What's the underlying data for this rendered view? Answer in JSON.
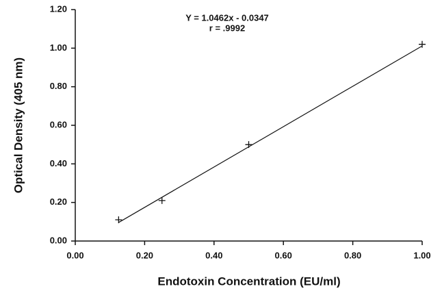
{
  "chart_data": {
    "type": "scatter",
    "xlabel": "Endotoxin Concentration (EU/ml)",
    "ylabel": "Optical Density (405 nm)",
    "annotations": [
      "Y = 1.0462x - 0.0347",
      "r = .9992"
    ],
    "x": [
      0.125,
      0.25,
      0.5,
      1.0
    ],
    "values": [
      0.11,
      0.21,
      0.5,
      1.02
    ],
    "fit": {
      "slope": 1.0462,
      "intercept": -0.0347
    },
    "color": "#111111",
    "xlim": [
      0,
      1
    ],
    "ylim": [
      0,
      1.2
    ],
    "xticks": [
      {
        "value": 0,
        "label": "0.00"
      },
      {
        "value": 0.2,
        "label": "0.20"
      },
      {
        "value": 0.4,
        "label": "0.40"
      },
      {
        "value": 0.6,
        "label": "0.60"
      },
      {
        "value": 0.8,
        "label": "0.80"
      },
      {
        "value": 1,
        "label": "1.00"
      }
    ],
    "yticks": [
      {
        "value": 0,
        "label": "0.00"
      },
      {
        "value": 0.2,
        "label": "0.20"
      },
      {
        "value": 0.4,
        "label": "0.40"
      },
      {
        "value": 0.6,
        "label": "0.60"
      },
      {
        "value": 0.8,
        "label": "0.80"
      },
      {
        "value": 1,
        "label": "1.00"
      },
      {
        "value": 1.2,
        "label": "1.20"
      }
    ],
    "grid": false
  }
}
